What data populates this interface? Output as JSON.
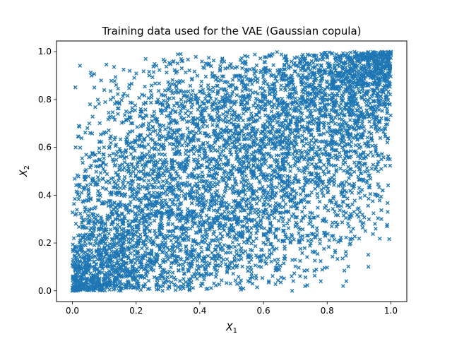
{
  "chart_data": {
    "type": "scatter",
    "title": "Training data used for the VAE (Gaussian copula)",
    "xlabel": {
      "base": "X",
      "sub": "1"
    },
    "ylabel": {
      "base": "X",
      "sub": "2"
    },
    "xlim": [
      -0.05,
      1.05
    ],
    "ylim": [
      -0.045,
      1.045
    ],
    "xticks": [
      0.0,
      0.2,
      0.4,
      0.6,
      0.8,
      1.0
    ],
    "yticks": [
      0.0,
      0.2,
      0.4,
      0.6,
      0.8,
      1.0
    ],
    "xtick_labels": [
      "0.0",
      "0.2",
      "0.4",
      "0.6",
      "0.8",
      "1.0"
    ],
    "ytick_labels": [
      "0.0",
      "0.2",
      "0.4",
      "0.6",
      "0.8",
      "1.0"
    ],
    "marker": "x",
    "color": "#1f77b4",
    "grid": false,
    "legend": "none",
    "sample_points": [
      [
        0.0,
        0.0
      ],
      [
        0.02,
        0.01
      ],
      [
        0.05,
        0.03
      ],
      [
        0.1,
        0.05
      ],
      [
        0.15,
        0.1
      ],
      [
        0.2,
        0.2
      ],
      [
        0.3,
        0.25
      ],
      [
        0.4,
        0.4
      ],
      [
        0.5,
        0.5
      ],
      [
        0.6,
        0.55
      ],
      [
        0.7,
        0.7
      ],
      [
        0.8,
        0.8
      ],
      [
        0.9,
        0.92
      ],
      [
        0.95,
        0.96
      ],
      [
        1.0,
        1.0
      ],
      [
        0.06,
        0.9
      ],
      [
        0.09,
        0.88
      ],
      [
        0.1,
        0.84
      ],
      [
        0.12,
        0.8
      ],
      [
        0.18,
        0.92
      ],
      [
        0.23,
        0.97
      ],
      [
        0.29,
        0.96
      ],
      [
        0.48,
        0.93
      ],
      [
        0.55,
        0.98
      ],
      [
        0.69,
        0.0
      ],
      [
        0.78,
        0.04
      ],
      [
        0.85,
        0.02
      ],
      [
        0.86,
        0.04
      ],
      [
        0.92,
        0.25
      ],
      [
        0.95,
        0.28
      ],
      [
        0.97,
        0.3
      ],
      [
        0.99,
        0.33
      ],
      [
        0.01,
        0.6
      ],
      [
        0.02,
        0.69
      ],
      [
        0.04,
        0.5
      ],
      [
        0.96,
        0.5
      ],
      [
        0.99,
        0.55
      ],
      [
        0.98,
        0.68
      ]
    ]
  }
}
